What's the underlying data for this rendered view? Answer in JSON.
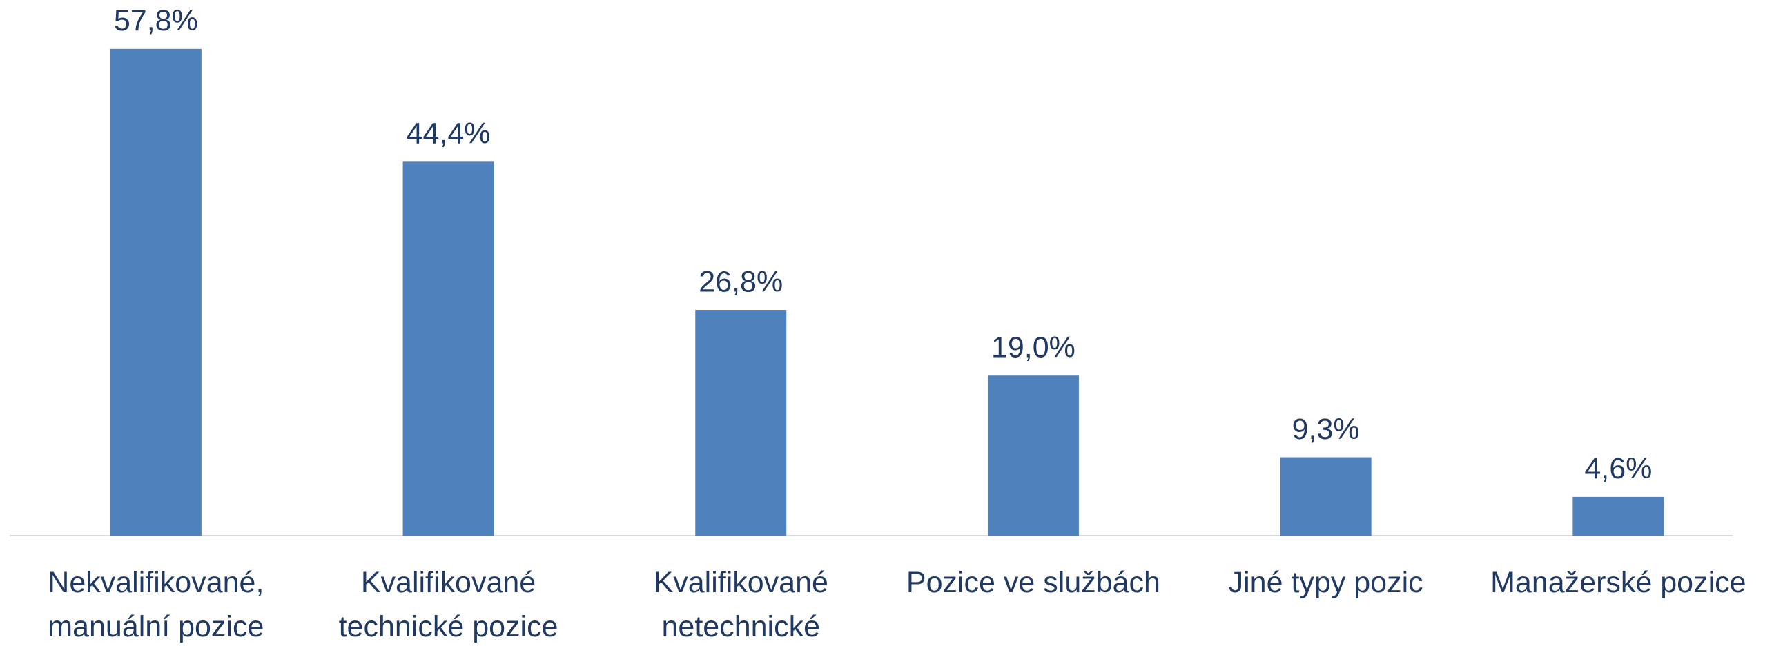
{
  "chart_data": {
    "type": "bar",
    "categories": [
      "Nekvalifikované,\nmanuální pozice",
      "Kvalifikované\ntechnické pozice",
      "Kvalifikované\nnetechnické",
      "Pozice ve službách",
      "Jiné typy pozic",
      "Manažerské pozice"
    ],
    "values": [
      57.8,
      44.4,
      26.8,
      19.0,
      9.3,
      4.6
    ],
    "value_labels": [
      "57,8%",
      "44,4%",
      "26,8%",
      "19,0%",
      "9,3%",
      "4,6%"
    ],
    "color": "#4f81bd"
  }
}
